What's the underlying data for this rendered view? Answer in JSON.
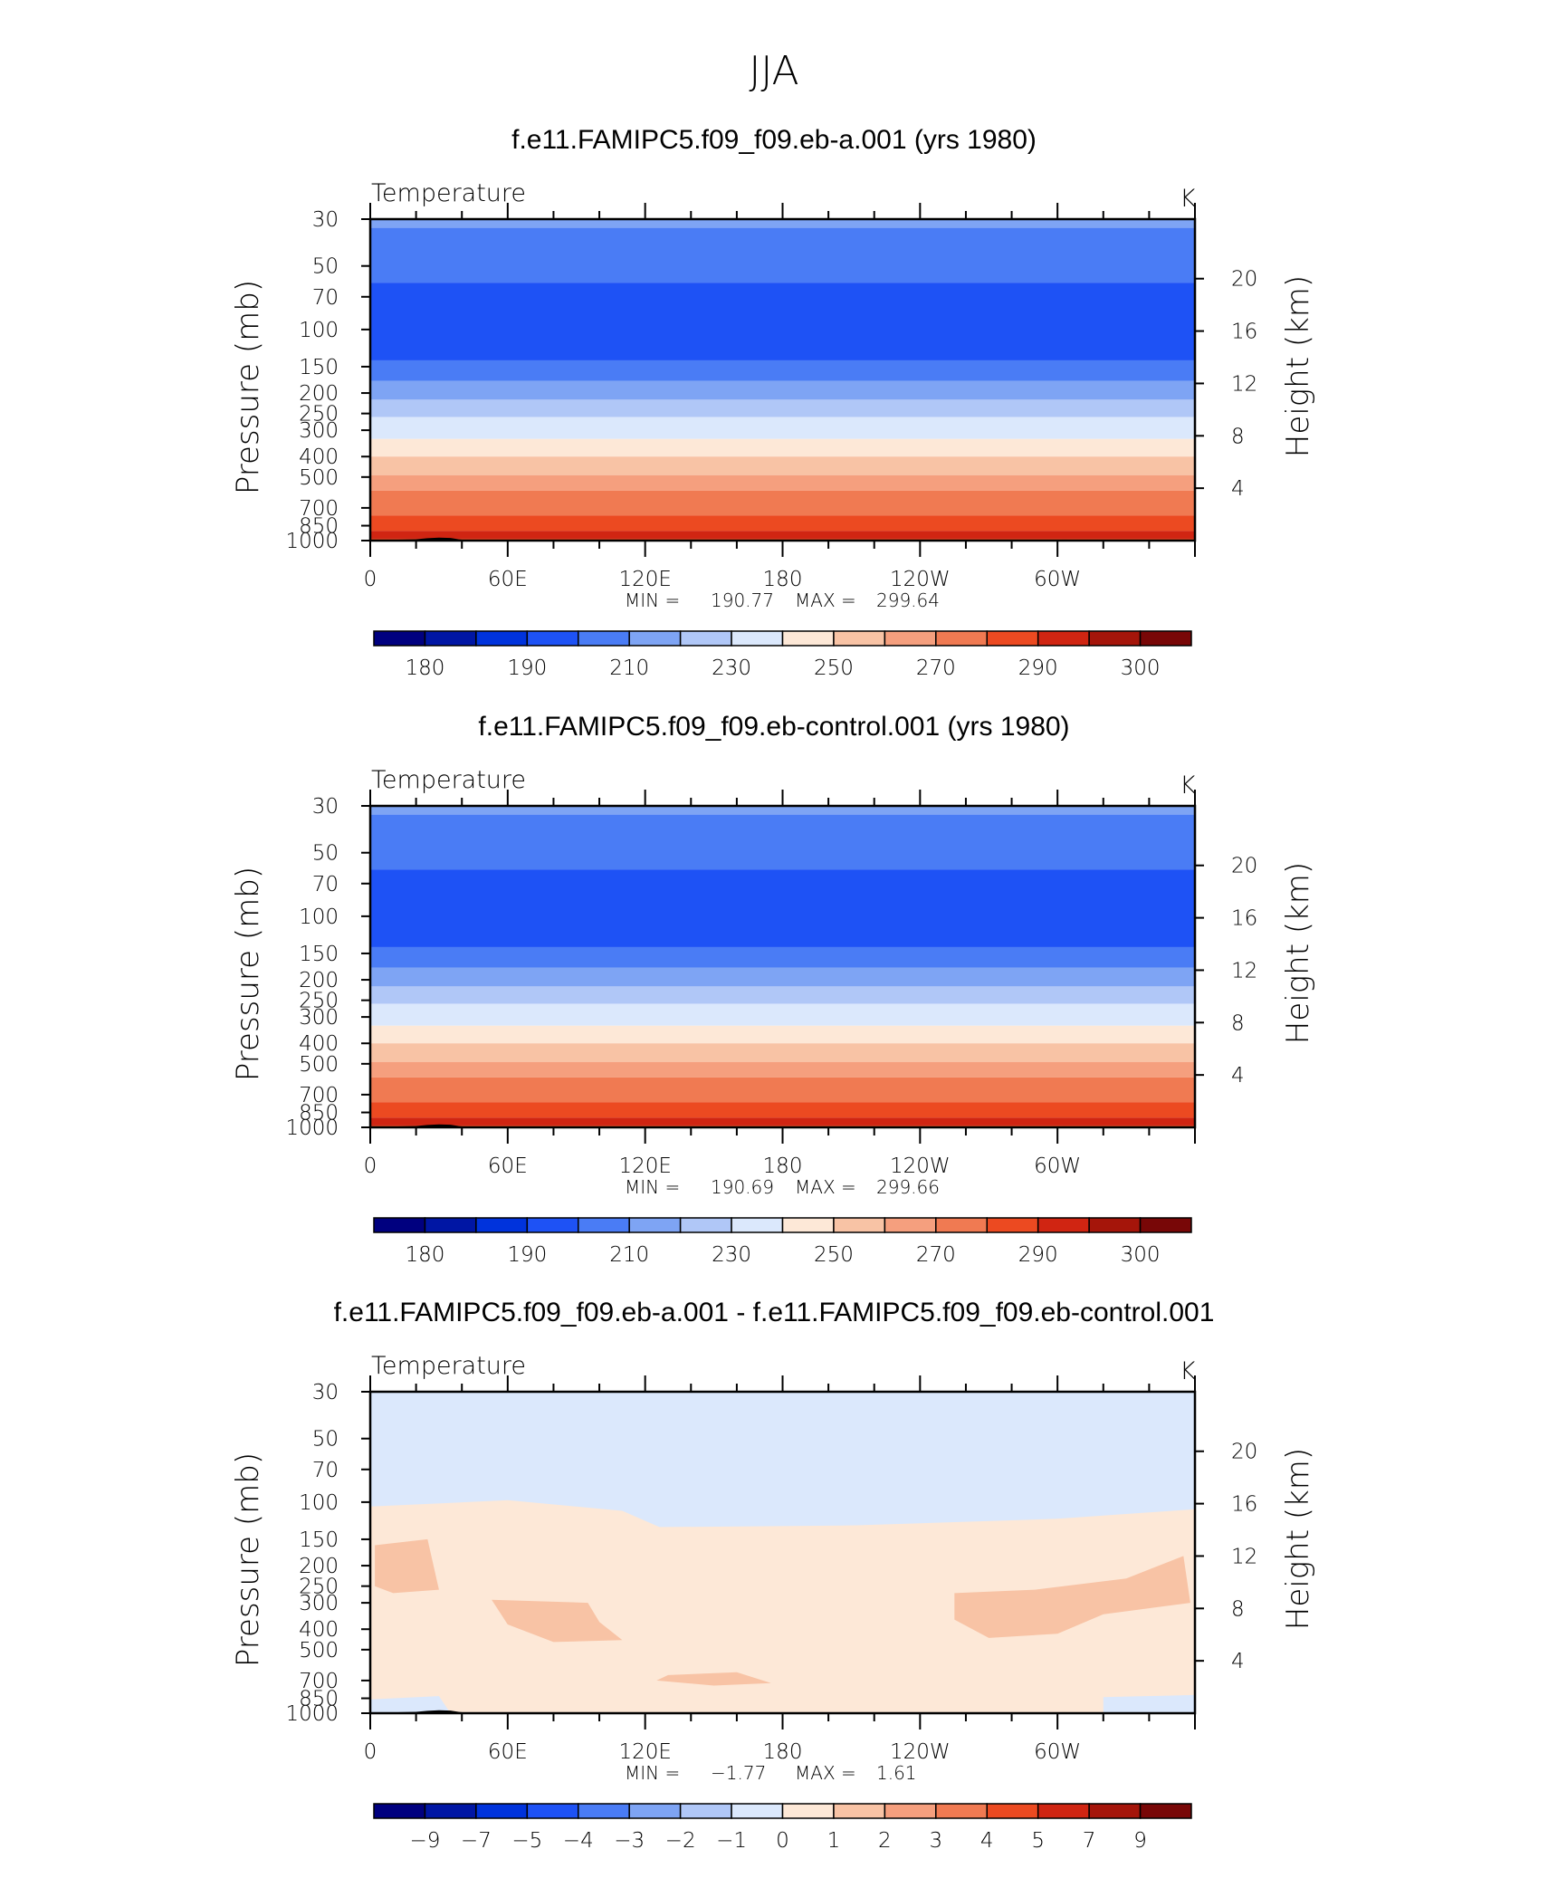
{
  "figure_title": "JJA",
  "colors": {
    "temp_scale": [
      "#00007f",
      "#0016a4",
      "#0033dc",
      "#1e52f5",
      "#4a7cf5",
      "#7ea4f4",
      "#b0c7f7",
      "#dbe8fc",
      "#fde8d7",
      "#f8c3a5",
      "#f59f7e",
      "#f07a52",
      "#ec4a21",
      "#d02512",
      "#a5150a",
      "#780707"
    ],
    "diff_scale": [
      "#00007f",
      "#0016a4",
      "#0033dc",
      "#1e52f5",
      "#4a7cf5",
      "#7ea4f4",
      "#b0c7f7",
      "#dbe8fc",
      "#fde8d7",
      "#f8c3a5",
      "#f59f7e",
      "#f07a52",
      "#ec4a21",
      "#d02512",
      "#a5150a",
      "#780707"
    ],
    "topography": "#000000"
  },
  "chart_data": [
    {
      "type": "heatmap",
      "title": "f.e11.FAMIPC5.f09_f09.eb-a.001 (yrs 1980)",
      "subtitle_left": "Temperature",
      "units": "K",
      "ylabel": "Pressure  (mb)",
      "ylabel_right": "Height  (km)",
      "x_ticks": [
        "0",
        "60E",
        "120E",
        "180",
        "120W",
        "60W"
      ],
      "x_range_deg": [
        0,
        360
      ],
      "y_ticks": [
        "30",
        "50",
        "70",
        "100",
        "150",
        "200",
        "250",
        "300",
        "400",
        "500",
        "700",
        "850",
        "1000"
      ],
      "y_ticks_right": [
        "20",
        "16",
        "12",
        "8",
        "4"
      ],
      "ylim_mb": [
        30,
        1000
      ],
      "stats": {
        "min_label": "MIN  =",
        "min": "190.77",
        "max_label": "MAX  =",
        "max": "299.64"
      },
      "colorbar": {
        "labels": [
          "180",
          "190",
          "210",
          "230",
          "250",
          "270",
          "290",
          "300"
        ]
      },
      "layers": [
        {
          "p_top": 30,
          "p_bottom": 33,
          "level_index": 5
        },
        {
          "p_top": 33,
          "p_bottom": 60,
          "level_index": 4
        },
        {
          "p_top": 60,
          "p_bottom": 140,
          "level_index": 3
        },
        {
          "p_top": 140,
          "p_bottom": 175,
          "level_index": 4
        },
        {
          "p_top": 175,
          "p_bottom": 215,
          "level_index": 5
        },
        {
          "p_top": 215,
          "p_bottom": 260,
          "level_index": 6
        },
        {
          "p_top": 260,
          "p_bottom": 330,
          "level_index": 7
        },
        {
          "p_top": 330,
          "p_bottom": 400,
          "level_index": 8
        },
        {
          "p_top": 400,
          "p_bottom": 490,
          "level_index": 9
        },
        {
          "p_top": 490,
          "p_bottom": 580,
          "level_index": 10
        },
        {
          "p_top": 580,
          "p_bottom": 760,
          "level_index": 11
        },
        {
          "p_top": 760,
          "p_bottom": 900,
          "level_index": 12
        },
        {
          "p_top": 900,
          "p_bottom": 980,
          "level_index": 13
        },
        {
          "p_top": 980,
          "p_bottom": 1000,
          "level_index": 12
        }
      ]
    },
    {
      "type": "heatmap",
      "title": "f.e11.FAMIPC5.f09_f09.eb-control.001 (yrs 1980)",
      "subtitle_left": "Temperature",
      "units": "K",
      "ylabel": "Pressure  (mb)",
      "ylabel_right": "Height  (km)",
      "x_ticks": [
        "0",
        "60E",
        "120E",
        "180",
        "120W",
        "60W"
      ],
      "x_range_deg": [
        0,
        360
      ],
      "y_ticks": [
        "30",
        "50",
        "70",
        "100",
        "150",
        "200",
        "250",
        "300",
        "400",
        "500",
        "700",
        "850",
        "1000"
      ],
      "y_ticks_right": [
        "20",
        "16",
        "12",
        "8",
        "4"
      ],
      "ylim_mb": [
        30,
        1000
      ],
      "stats": {
        "min_label": "MIN  =",
        "min": "190.69",
        "max_label": "MAX  =",
        "max": "299.66"
      },
      "colorbar": {
        "labels": [
          "180",
          "190",
          "210",
          "230",
          "250",
          "270",
          "290",
          "300"
        ]
      },
      "layers": [
        {
          "p_top": 30,
          "p_bottom": 33,
          "level_index": 5
        },
        {
          "p_top": 33,
          "p_bottom": 60,
          "level_index": 4
        },
        {
          "p_top": 60,
          "p_bottom": 140,
          "level_index": 3
        },
        {
          "p_top": 140,
          "p_bottom": 175,
          "level_index": 4
        },
        {
          "p_top": 175,
          "p_bottom": 215,
          "level_index": 5
        },
        {
          "p_top": 215,
          "p_bottom": 260,
          "level_index": 6
        },
        {
          "p_top": 260,
          "p_bottom": 330,
          "level_index": 7
        },
        {
          "p_top": 330,
          "p_bottom": 400,
          "level_index": 8
        },
        {
          "p_top": 400,
          "p_bottom": 490,
          "level_index": 9
        },
        {
          "p_top": 490,
          "p_bottom": 580,
          "level_index": 10
        },
        {
          "p_top": 580,
          "p_bottom": 760,
          "level_index": 11
        },
        {
          "p_top": 760,
          "p_bottom": 900,
          "level_index": 12
        },
        {
          "p_top": 900,
          "p_bottom": 980,
          "level_index": 13
        },
        {
          "p_top": 980,
          "p_bottom": 1000,
          "level_index": 12
        }
      ]
    },
    {
      "type": "heatmap",
      "title": "f.e11.FAMIPC5.f09_f09.eb-a.001 - f.e11.FAMIPC5.f09_f09.eb-control.001",
      "subtitle_left": "Temperature",
      "units": "K",
      "ylabel": "Pressure  (mb)",
      "ylabel_right": "Height  (km)",
      "x_ticks": [
        "0",
        "60E",
        "120E",
        "180",
        "120W",
        "60W"
      ],
      "x_range_deg": [
        0,
        360
      ],
      "y_ticks": [
        "30",
        "50",
        "70",
        "100",
        "150",
        "200",
        "250",
        "300",
        "400",
        "500",
        "700",
        "850",
        "1000"
      ],
      "y_ticks_right": [
        "20",
        "16",
        "12",
        "8",
        "4"
      ],
      "ylim_mb": [
        30,
        1000
      ],
      "stats": {
        "min_label": "MIN  =",
        "min": "−1.77",
        "max_label": "MAX  =",
        "max": "1.61"
      },
      "colorbar": {
        "labels": [
          "−9",
          "−7",
          "−5",
          "−4",
          "−3",
          "−2",
          "−1",
          "0",
          "1",
          "2",
          "3",
          "4",
          "5",
          "7",
          "9"
        ]
      },
      "regions": [
        {
          "level_index": 6,
          "points_deg_mb": [
            [
              0,
              42
            ],
            [
              120,
              44
            ],
            [
              160,
              48
            ],
            [
              210,
              50
            ],
            [
              225,
              56
            ],
            [
              280,
              58
            ],
            [
              360,
              42
            ],
            [
              360,
              90
            ],
            [
              300,
              102
            ],
            [
              240,
              98
            ],
            [
              190,
              86
            ],
            [
              140,
              90
            ],
            [
              80,
              93
            ],
            [
              0,
              92
            ]
          ]
        },
        {
          "level_index": 7,
          "points_deg_mb": [
            [
              0,
              105
            ],
            [
              60,
              98
            ],
            [
              110,
              110
            ],
            [
              150,
              170
            ],
            [
              200,
              130
            ],
            [
              300,
              120
            ],
            [
              360,
              108
            ],
            [
              360,
              30
            ],
            [
              0,
              30
            ]
          ]
        },
        {
          "level_index": 8,
          "points_deg_mb": [
            [
              0,
              135
            ],
            [
              350,
              125
            ],
            [
              360,
              130
            ],
            [
              360,
              780
            ],
            [
              320,
              820
            ],
            [
              260,
              860
            ],
            [
              170,
              840
            ],
            [
              60,
              770
            ],
            [
              0,
              760
            ]
          ]
        },
        {
          "level_index": 9,
          "points_deg_mb": [
            [
              2,
              160
            ],
            [
              25,
              150
            ],
            [
              30,
              260
            ],
            [
              10,
              270
            ],
            [
              2,
              250
            ]
          ]
        },
        {
          "level_index": 9,
          "points_deg_mb": [
            [
              53,
              290
            ],
            [
              95,
              300
            ],
            [
              100,
              370
            ],
            [
              110,
              450
            ],
            [
              80,
              460
            ],
            [
              60,
              380
            ]
          ]
        },
        {
          "level_index": 9,
          "points_deg_mb": [
            [
              255,
              270
            ],
            [
              290,
              260
            ],
            [
              330,
              230
            ],
            [
              355,
              180
            ],
            [
              358,
              300
            ],
            [
              320,
              340
            ],
            [
              300,
              420
            ],
            [
              270,
              440
            ],
            [
              255,
              360
            ]
          ]
        },
        {
          "level_index": 9,
          "points_deg_mb": [
            [
              130,
              660
            ],
            [
              160,
              640
            ],
            [
              175,
              720
            ],
            [
              150,
              740
            ],
            [
              125,
              700
            ]
          ]
        },
        {
          "level_index": 7,
          "points_deg_mb": [
            [
              0,
              860
            ],
            [
              30,
              830
            ],
            [
              35,
              1000
            ],
            [
              0,
              1000
            ]
          ]
        },
        {
          "level_index": 7,
          "points_deg_mb": [
            [
              320,
              840
            ],
            [
              360,
              820
            ],
            [
              360,
              1000
            ],
            [
              320,
              1000
            ]
          ]
        }
      ]
    }
  ],
  "topography_outline_deg_mb": [
    [
      10,
      1000
    ],
    [
      12,
      990
    ],
    [
      20,
      985
    ],
    [
      25,
      975
    ],
    [
      30,
      968
    ],
    [
      35,
      972
    ],
    [
      40,
      990
    ],
    [
      42,
      1000
    ]
  ]
}
